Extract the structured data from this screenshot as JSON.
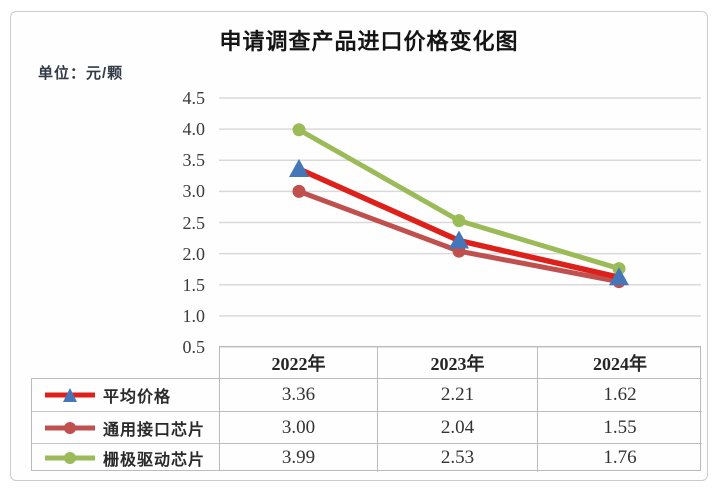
{
  "title": "申请调查产品进口价格变化图",
  "unit_label": "单位：元/颗",
  "chart_data": {
    "type": "line",
    "title": "申请调查产品进口价格变化图",
    "ylabel": "单位：元/颗",
    "categories": [
      "2022年",
      "2023年",
      "2024年"
    ],
    "series": [
      {
        "name": "平均价格",
        "values": [
          3.36,
          2.21,
          1.62
        ],
        "color": "#dd2019",
        "marker": "triangle",
        "marker_color": "#4576b9",
        "line_width": 5.5
      },
      {
        "name": "通用接口芯片",
        "values": [
          3.0,
          2.04,
          1.55
        ],
        "color": "#c0504d",
        "marker": "circle",
        "marker_color": "#c0504d",
        "line_width": 5
      },
      {
        "name": "栅极驱动芯片",
        "values": [
          3.99,
          2.53,
          1.76
        ],
        "color": "#9bbb59",
        "marker": "circle",
        "marker_color": "#9bbb59",
        "line_width": 5
      }
    ],
    "ylim": [
      0.5,
      4.5
    ],
    "ytick_step": 0.5,
    "yticks": [
      "4.5",
      "4.0",
      "3.5",
      "3.0",
      "2.5",
      "2.0",
      "1.5",
      "1.0",
      "0.5"
    ],
    "grid": "horizontal",
    "grid_color": "#d9d9d9",
    "legend_position": "table-left"
  },
  "table": {
    "headers": [
      "2022年",
      "2023年",
      "2024年"
    ],
    "rows": [
      {
        "label": "平均价格",
        "values": [
          "3.36",
          "2.21",
          "1.62"
        ]
      },
      {
        "label": "通用接口芯片",
        "values": [
          "3.00",
          "2.04",
          "1.55"
        ]
      },
      {
        "label": "栅极驱动芯片",
        "values": [
          "3.99",
          "2.53",
          "1.76"
        ]
      }
    ]
  },
  "colors": {
    "card_border": "#cccccc",
    "table_border": "#bcbcbc",
    "gridline": "#d9d9d9",
    "title_text": "#151515",
    "axis_text": "#3c3c3c"
  }
}
